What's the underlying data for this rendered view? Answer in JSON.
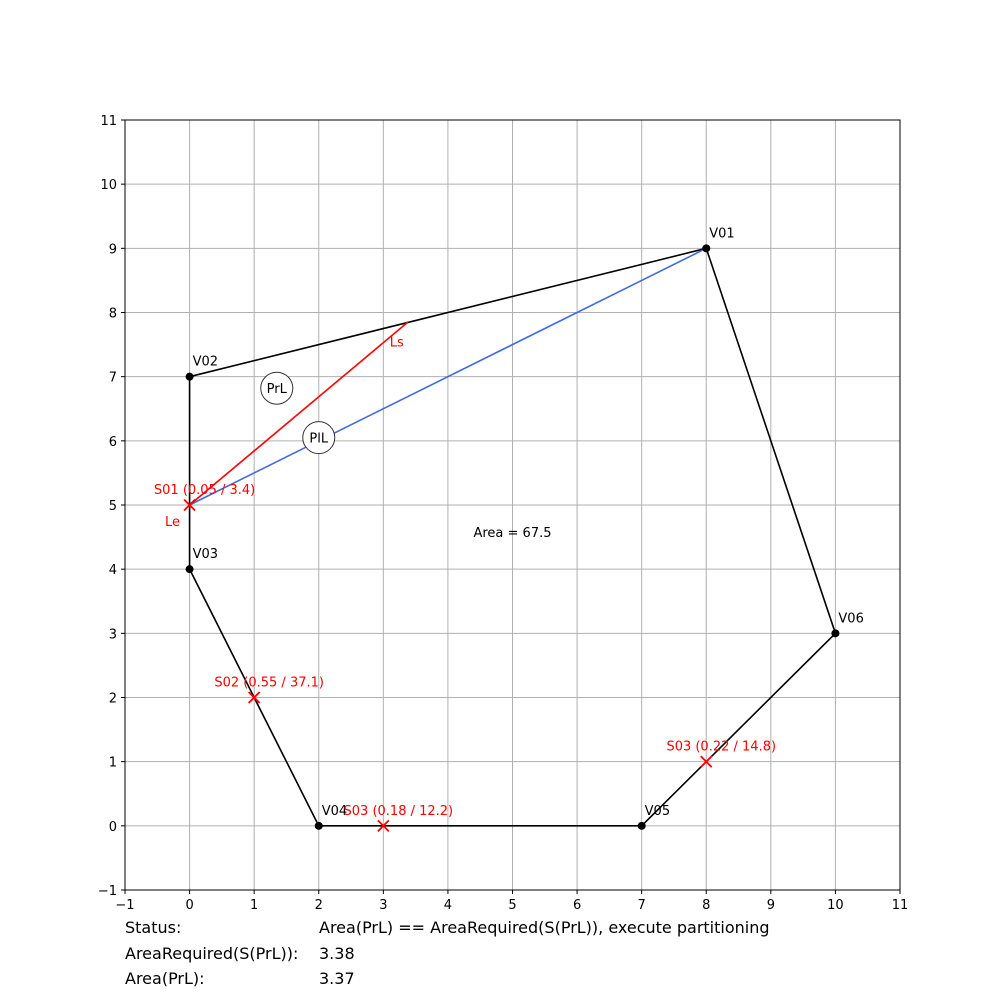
{
  "chart_data": {
    "type": "scatter",
    "xlim": [
      -1,
      11
    ],
    "ylim": [
      -1,
      11
    ],
    "xticks": [
      -1,
      0,
      1,
      2,
      3,
      4,
      5,
      6,
      7,
      8,
      9,
      10,
      11
    ],
    "yticks": [
      -1,
      0,
      1,
      2,
      3,
      4,
      5,
      6,
      7,
      8,
      9,
      10,
      11
    ],
    "grid": true,
    "colors": {
      "polygon": "#000000",
      "red": "#ff0000",
      "blue": "#4169e1",
      "grid": "#b0b0b0"
    },
    "polygon": [
      {
        "label": "V01",
        "x": 8,
        "y": 9
      },
      {
        "label": "V02",
        "x": 0,
        "y": 7
      },
      {
        "label": "V03",
        "x": 0,
        "y": 4
      },
      {
        "label": "V04",
        "x": 2,
        "y": 0
      },
      {
        "label": "V05",
        "x": 7,
        "y": 0
      },
      {
        "label": "V06",
        "x": 10,
        "y": 3
      }
    ],
    "sites": [
      {
        "label": "S01 (0.05 / 3.4)",
        "x": 0,
        "y": 5
      },
      {
        "label": "S02 (0.55 / 37.1)",
        "x": 1,
        "y": 2
      },
      {
        "label": "S03 (0.18 / 12.2)",
        "x": 3,
        "y": 0
      },
      {
        "label": "S03 (0.22 / 14.8)",
        "x": 8,
        "y": 1
      }
    ],
    "red_line": {
      "from": {
        "x": 0,
        "y": 5
      },
      "to": {
        "x": 3.38,
        "y": 7.85
      }
    },
    "blue_line": {
      "from": {
        "x": 0,
        "y": 5
      },
      "to": {
        "x": 8,
        "y": 9
      }
    },
    "line_labels": [
      {
        "text": "Ls",
        "x": 3.1,
        "y": 7.55
      },
      {
        "text": "Le",
        "x": -0.38,
        "y": 4.75
      }
    ],
    "circle_labels": [
      {
        "text": "PrL",
        "x": 1.35,
        "y": 6.82
      },
      {
        "text": "PlL",
        "x": 2.0,
        "y": 6.05
      }
    ],
    "area_annotation": {
      "text": "Area = 67.5",
      "x": 5.0,
      "y": 4.58
    }
  },
  "status": {
    "rows": [
      {
        "label": "Status:",
        "value": "Area(PrL) == AreaRequired(S(PrL)), execute partitioning"
      },
      {
        "label": "AreaRequired(S(PrL)):",
        "value": "3.38"
      },
      {
        "label": "Area(PrL):",
        "value": "3.37"
      }
    ]
  }
}
